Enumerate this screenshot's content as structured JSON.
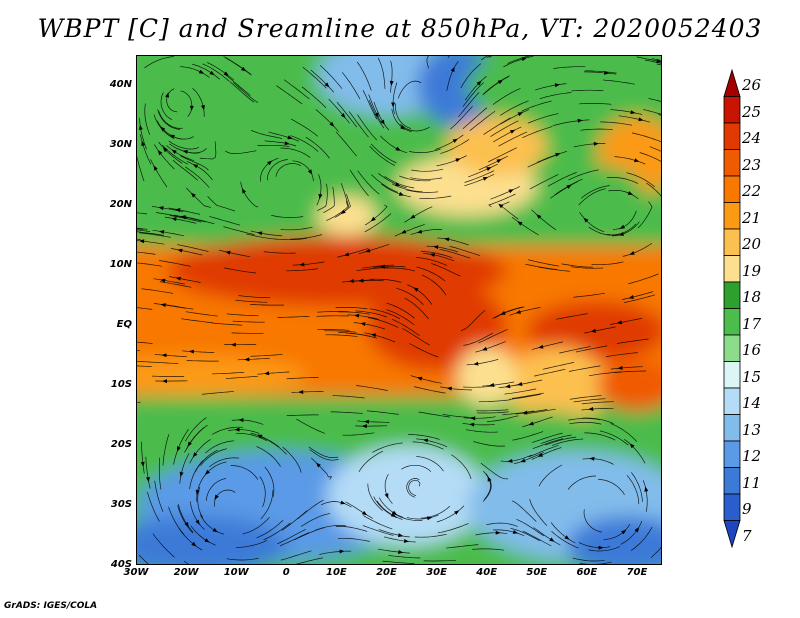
{
  "title": "WBPT [C] and Sreamline at 850hPa, VT: 2020052403",
  "credit": "GrADS: IGES/COLA",
  "map": {
    "lat_range": [
      -40,
      45
    ],
    "lon_range": [
      -30,
      75
    ],
    "lat_ticks": [
      "40N",
      "30N",
      "20N",
      "10N",
      "EQ",
      "10S",
      "20S",
      "30S",
      "40S"
    ],
    "lon_ticks": [
      "30W",
      "20W",
      "10W",
      "0",
      "10E",
      "20E",
      "30E",
      "40E",
      "50E",
      "60E",
      "70E"
    ]
  },
  "colorbar": {
    "labels": [
      "26",
      "25",
      "24",
      "23",
      "22",
      "21",
      "20",
      "19",
      "18",
      "17",
      "16",
      "15",
      "14",
      "13",
      "12",
      "11",
      "9",
      "7"
    ],
    "colors": [
      "#a50000",
      "#c81400",
      "#e03a00",
      "#f05a00",
      "#f87800",
      "#fc9a14",
      "#fcc050",
      "#fce090",
      "#2ea02e",
      "#4cbc4c",
      "#8cdc8c",
      "#dcf6f6",
      "#b4dcf6",
      "#82bceb",
      "#5a9ae6",
      "#3c7ad8",
      "#2a5ecc",
      "#1e46c0"
    ]
  }
}
